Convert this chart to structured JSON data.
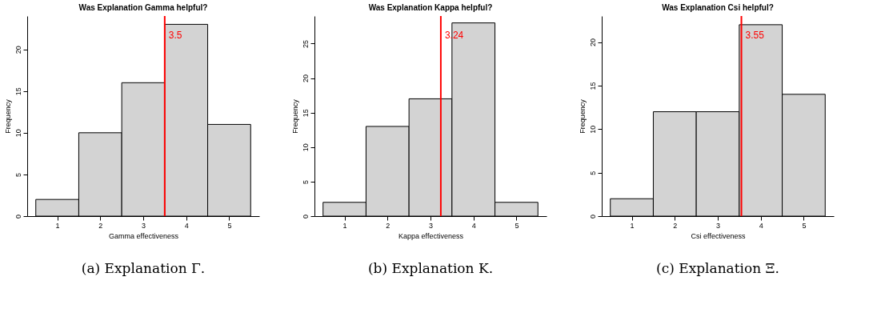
{
  "chart_data": [
    {
      "type": "histogram",
      "title": "Was Explanation Gamma helpful?",
      "xlabel": "Gamma effectiveness",
      "ylabel": "Frequency",
      "bins": [
        0.5,
        1.5,
        2.5,
        3.5,
        4.5,
        5.5
      ],
      "values": [
        2,
        10,
        16,
        23,
        11
      ],
      "color": "#d3d3d3",
      "xlim": [
        0.3,
        5.7
      ],
      "xticks": [
        1,
        2,
        3,
        4,
        5
      ],
      "ylim": [
        0,
        24
      ],
      "yticks": [
        0,
        5,
        10,
        15,
        20
      ],
      "grid": false,
      "ref_lines": [
        {
          "axis": "x",
          "value": 3.5,
          "label": "3.5",
          "color": "#ff0000"
        }
      ],
      "annotations": [
        "(a) Explanation Γ."
      ]
    },
    {
      "type": "histogram",
      "title": "Was Explanation Kappa helpful?",
      "xlabel": "Kappa effectiveness",
      "ylabel": "Frequency",
      "bins": [
        0.5,
        1.5,
        2.5,
        3.5,
        4.5,
        5.5
      ],
      "values": [
        2,
        13,
        17,
        28,
        2
      ],
      "color": "#d3d3d3",
      "xlim": [
        0.3,
        5.7
      ],
      "xticks": [
        1,
        2,
        3,
        4,
        5
      ],
      "ylim": [
        0,
        29
      ],
      "yticks": [
        0,
        5,
        10,
        15,
        20,
        25
      ],
      "grid": false,
      "ref_lines": [
        {
          "axis": "x",
          "value": 3.24,
          "label": "3.24",
          "color": "#ff0000"
        }
      ],
      "annotations": [
        "(b) Explanation K."
      ]
    },
    {
      "type": "histogram",
      "title": "Was Explanation Csi helpful?",
      "xlabel": "Csi effectiveness",
      "ylabel": "Frequency",
      "bins": [
        0.5,
        1.5,
        2.5,
        3.5,
        4.5,
        5.5
      ],
      "values": [
        2,
        12,
        12,
        22,
        14
      ],
      "color": "#d3d3d3",
      "xlim": [
        0.3,
        5.7
      ],
      "xticks": [
        1,
        2,
        3,
        4,
        5
      ],
      "ylim": [
        0,
        23
      ],
      "yticks": [
        0,
        5,
        10,
        15,
        20
      ],
      "grid": false,
      "ref_lines": [
        {
          "axis": "x",
          "value": 3.55,
          "label": "3.55",
          "color": "#ff0000"
        }
      ],
      "annotations": [
        "(c) Explanation Ξ."
      ]
    }
  ]
}
